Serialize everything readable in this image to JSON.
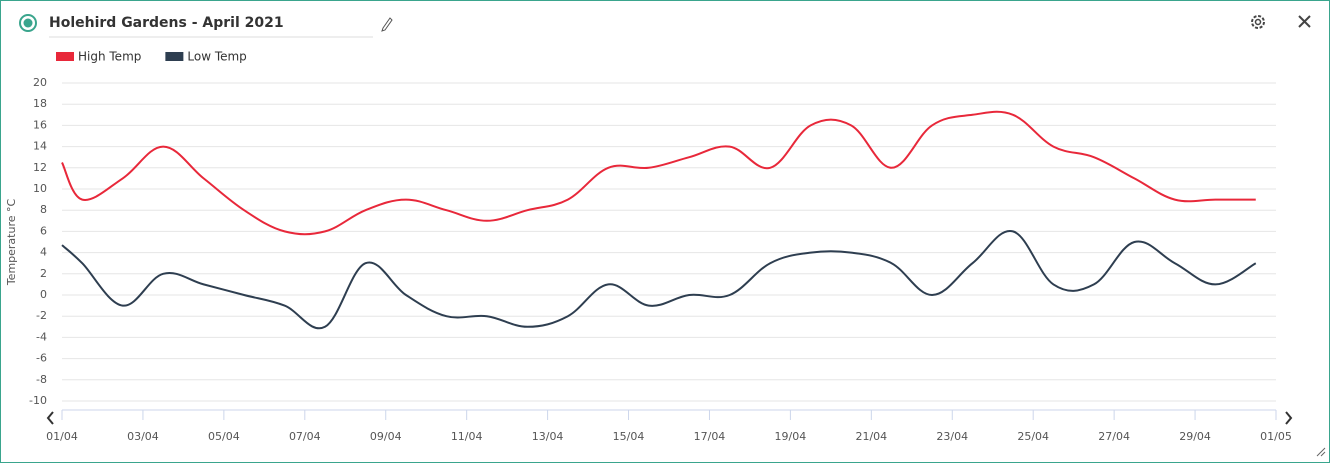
{
  "chart_data": {
    "type": "line",
    "title": "Holehird Gardens - April 2021",
    "y_label": "Temperature °C",
    "x": [
      1,
      1.5,
      2.5,
      3.5,
      4.5,
      5.5,
      6.5,
      7.5,
      8.5,
      9.5,
      10.5,
      11.5,
      12.5,
      13.5,
      14.5,
      15.5,
      16.5,
      17.5,
      18.5,
      19.5,
      20.5,
      21.5,
      22.5,
      23.5,
      24.5,
      25.5,
      26.5,
      27.5,
      28.5,
      29.5,
      30.5
    ],
    "series": [
      {
        "name": "High Temp",
        "color": "#e8283a",
        "values": [
          12.5,
          9,
          11,
          14,
          11,
          8,
          6,
          6,
          8,
          9,
          8,
          7,
          8,
          9,
          12,
          12,
          13,
          14,
          12,
          16,
          16,
          12,
          16,
          17,
          17,
          14,
          13,
          11,
          9,
          9,
          9
        ]
      },
      {
        "name": "Low Temp",
        "color": "#2e3e50",
        "values": [
          4.7,
          3,
          -1,
          2,
          1,
          0,
          -1,
          -3,
          3,
          0,
          -2,
          -2,
          -3,
          -2,
          1,
          -1,
          0,
          0,
          3,
          4,
          4,
          3,
          0,
          3,
          6,
          1,
          1,
          5,
          3,
          1,
          3
        ]
      }
    ],
    "xlim": [
      1,
      31
    ],
    "xticks": [
      {
        "value": 1,
        "label": "01/04"
      },
      {
        "value": 3,
        "label": "03/04"
      },
      {
        "value": 5,
        "label": "05/04"
      },
      {
        "value": 7,
        "label": "07/04"
      },
      {
        "value": 9,
        "label": "09/04"
      },
      {
        "value": 11,
        "label": "11/04"
      },
      {
        "value": 13,
        "label": "13/04"
      },
      {
        "value": 15,
        "label": "15/04"
      },
      {
        "value": 17,
        "label": "17/04"
      },
      {
        "value": 19,
        "label": "19/04"
      },
      {
        "value": 21,
        "label": "21/04"
      },
      {
        "value": 23,
        "label": "23/04"
      },
      {
        "value": 25,
        "label": "25/04"
      },
      {
        "value": 27,
        "label": "27/04"
      },
      {
        "value": 29,
        "label": "29/04"
      },
      {
        "value": 31,
        "label": "01/05"
      }
    ],
    "ylim": [
      -10,
      20
    ],
    "yticks": [
      -10,
      -8,
      -6,
      -4,
      -2,
      0,
      2,
      4,
      6,
      8,
      10,
      12,
      14,
      16,
      18,
      20
    ],
    "grid": true
  }
}
